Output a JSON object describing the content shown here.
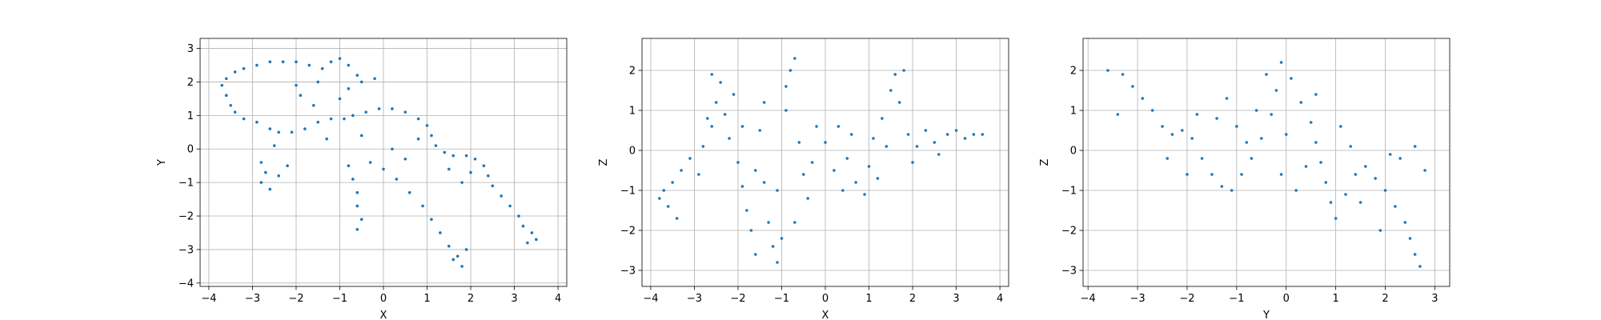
{
  "chart_data": [
    {
      "type": "scatter",
      "xlabel": "X",
      "ylabel": "Y",
      "xlim": [
        -4.2,
        4.2
      ],
      "ylim": [
        -4.1,
        3.3
      ],
      "xticks": [
        -4,
        -3,
        -2,
        -1,
        0,
        1,
        2,
        3,
        4
      ],
      "yticks": [
        -4,
        -3,
        -2,
        -1,
        0,
        1,
        2,
        3
      ],
      "grid": true,
      "color": "#1f77b4",
      "series": [
        {
          "points": [
            [
              -3.6,
              2.1
            ],
            [
              -3.4,
              2.3
            ],
            [
              -3.2,
              2.4
            ],
            [
              -2.9,
              2.5
            ],
            [
              -2.6,
              2.6
            ],
            [
              -2.3,
              2.6
            ],
            [
              -2.0,
              2.6
            ],
            [
              -1.7,
              2.5
            ],
            [
              -1.4,
              2.4
            ],
            [
              -1.2,
              2.6
            ],
            [
              -1.0,
              2.7
            ],
            [
              -0.8,
              2.5
            ],
            [
              -0.6,
              2.2
            ],
            [
              -0.5,
              2.0
            ],
            [
              -3.7,
              1.9
            ],
            [
              -3.6,
              1.6
            ],
            [
              -3.5,
              1.3
            ],
            [
              -3.4,
              1.1
            ],
            [
              -3.2,
              0.9
            ],
            [
              -2.9,
              0.8
            ],
            [
              -2.6,
              0.6
            ],
            [
              -2.4,
              0.5
            ],
            [
              -2.1,
              0.5
            ],
            [
              -1.8,
              0.6
            ],
            [
              -1.5,
              0.8
            ],
            [
              -1.2,
              0.9
            ],
            [
              -0.9,
              0.9
            ],
            [
              -0.7,
              1.0
            ],
            [
              -0.4,
              1.1
            ],
            [
              -0.1,
              1.2
            ],
            [
              0.2,
              1.2
            ],
            [
              0.5,
              1.1
            ],
            [
              0.8,
              0.9
            ],
            [
              1.0,
              0.7
            ],
            [
              1.1,
              0.4
            ],
            [
              1.2,
              0.1
            ],
            [
              1.4,
              -0.1
            ],
            [
              1.6,
              -0.2
            ],
            [
              1.9,
              -0.2
            ],
            [
              2.1,
              -0.3
            ],
            [
              2.3,
              -0.5
            ],
            [
              2.4,
              -0.8
            ],
            [
              2.5,
              -1.1
            ],
            [
              2.7,
              -1.4
            ],
            [
              2.9,
              -1.7
            ],
            [
              3.1,
              -2.0
            ],
            [
              3.2,
              -2.3
            ],
            [
              3.4,
              -2.5
            ],
            [
              3.5,
              -2.7
            ],
            [
              3.3,
              -2.8
            ],
            [
              -2.8,
              -0.4
            ],
            [
              -2.7,
              -0.7
            ],
            [
              -2.8,
              -1.0
            ],
            [
              -2.6,
              -1.2
            ],
            [
              -2.4,
              -0.8
            ],
            [
              -2.2,
              -0.5
            ],
            [
              -0.8,
              -0.5
            ],
            [
              -0.7,
              -0.9
            ],
            [
              -0.6,
              -1.3
            ],
            [
              -0.6,
              -1.7
            ],
            [
              -0.5,
              -2.1
            ],
            [
              -0.6,
              -2.4
            ],
            [
              -0.3,
              -0.4
            ],
            [
              0.0,
              -0.6
            ],
            [
              0.3,
              -0.9
            ],
            [
              0.6,
              -1.3
            ],
            [
              0.9,
              -1.7
            ],
            [
              1.1,
              -2.1
            ],
            [
              1.3,
              -2.5
            ],
            [
              1.5,
              -2.9
            ],
            [
              1.7,
              -3.2
            ],
            [
              1.8,
              -3.5
            ],
            [
              1.6,
              -3.3
            ],
            [
              1.9,
              -3.0
            ],
            [
              -1.6,
              1.3
            ],
            [
              -1.9,
              1.6
            ],
            [
              -2.0,
              1.9
            ],
            [
              -1.0,
              1.5
            ],
            [
              -0.8,
              1.8
            ],
            [
              -0.5,
              0.4
            ],
            [
              0.2,
              0.0
            ],
            [
              0.5,
              -0.3
            ],
            [
              0.8,
              0.3
            ],
            [
              1.5,
              -0.6
            ],
            [
              2.0,
              -0.7
            ],
            [
              1.8,
              -1.0
            ],
            [
              -1.3,
              0.3
            ],
            [
              -2.5,
              0.1
            ],
            [
              -0.2,
              2.1
            ],
            [
              -1.5,
              2.0
            ]
          ]
        }
      ]
    },
    {
      "type": "scatter",
      "xlabel": "X",
      "ylabel": "Z",
      "xlim": [
        -4.2,
        4.2
      ],
      "ylim": [
        -3.4,
        2.8
      ],
      "xticks": [
        -4,
        -3,
        -2,
        -1,
        0,
        1,
        2,
        3,
        4
      ],
      "yticks": [
        -3,
        -2,
        -1,
        0,
        1,
        2
      ],
      "grid": true,
      "color": "#1f77b4",
      "series": [
        {
          "points": [
            [
              -3.7,
              -1.0
            ],
            [
              -3.6,
              -1.4
            ],
            [
              -3.5,
              -0.8
            ],
            [
              -3.4,
              -1.7
            ],
            [
              -3.3,
              -0.5
            ],
            [
              -3.1,
              -0.2
            ],
            [
              -2.8,
              0.1
            ],
            [
              -2.6,
              0.6
            ],
            [
              -2.5,
              1.2
            ],
            [
              -2.4,
              1.7
            ],
            [
              -2.6,
              1.9
            ],
            [
              -2.3,
              0.9
            ],
            [
              -2.2,
              0.3
            ],
            [
              -2.0,
              -0.3
            ],
            [
              -1.9,
              -0.9
            ],
            [
              -1.8,
              -1.5
            ],
            [
              -1.7,
              -2.0
            ],
            [
              -1.6,
              -0.5
            ],
            [
              -1.5,
              0.5
            ],
            [
              -1.4,
              1.2
            ],
            [
              -1.3,
              -1.8
            ],
            [
              -1.2,
              -2.4
            ],
            [
              -1.1,
              -2.8
            ],
            [
              -1.0,
              -2.2
            ],
            [
              -0.9,
              1.0
            ],
            [
              -0.8,
              2.0
            ],
            [
              -0.7,
              2.3
            ],
            [
              -0.9,
              1.6
            ],
            [
              -0.6,
              0.2
            ],
            [
              -0.5,
              -0.6
            ],
            [
              -0.4,
              -1.2
            ],
            [
              -0.3,
              -0.3
            ],
            [
              0.0,
              0.2
            ],
            [
              0.3,
              0.6
            ],
            [
              0.5,
              -0.2
            ],
            [
              0.7,
              -0.8
            ],
            [
              0.9,
              -1.1
            ],
            [
              1.1,
              0.3
            ],
            [
              1.3,
              0.8
            ],
            [
              1.5,
              1.5
            ],
            [
              1.6,
              1.9
            ],
            [
              1.8,
              2.0
            ],
            [
              1.7,
              1.2
            ],
            [
              1.9,
              0.4
            ],
            [
              2.1,
              0.1
            ],
            [
              2.3,
              0.5
            ],
            [
              2.5,
              0.2
            ],
            [
              2.8,
              0.4
            ],
            [
              3.0,
              0.5
            ],
            [
              3.2,
              0.3
            ],
            [
              3.4,
              0.4
            ],
            [
              3.6,
              0.4
            ],
            [
              0.2,
              -0.5
            ],
            [
              0.6,
              0.4
            ],
            [
              1.0,
              -0.4
            ],
            [
              1.4,
              0.1
            ],
            [
              2.0,
              -0.3
            ],
            [
              -2.7,
              0.8
            ],
            [
              -2.1,
              1.4
            ],
            [
              -1.4,
              -0.8
            ],
            [
              -1.9,
              0.6
            ],
            [
              -1.1,
              -1.0
            ],
            [
              -0.7,
              -1.8
            ],
            [
              0.4,
              -1.0
            ],
            [
              1.2,
              -0.7
            ],
            [
              2.6,
              -0.1
            ],
            [
              -2.9,
              -0.6
            ],
            [
              -3.8,
              -1.2
            ],
            [
              -1.6,
              -2.6
            ],
            [
              -0.2,
              0.6
            ]
          ]
        }
      ]
    },
    {
      "type": "scatter",
      "xlabel": "Y",
      "ylabel": "Z",
      "xlim": [
        -4.1,
        3.3
      ],
      "ylim": [
        -3.4,
        2.8
      ],
      "xticks": [
        -4,
        -3,
        -2,
        -1,
        0,
        1,
        2,
        3
      ],
      "yticks": [
        -3,
        -2,
        -1,
        0,
        1,
        2
      ],
      "grid": true,
      "color": "#1f77b4",
      "series": [
        {
          "points": [
            [
              -3.6,
              2.0
            ],
            [
              -3.3,
              1.9
            ],
            [
              -3.1,
              1.6
            ],
            [
              -2.9,
              1.3
            ],
            [
              -2.7,
              1.0
            ],
            [
              -2.5,
              0.6
            ],
            [
              -2.3,
              0.4
            ],
            [
              -2.1,
              0.5
            ],
            [
              -1.9,
              0.3
            ],
            [
              -1.7,
              -0.2
            ],
            [
              -1.5,
              -0.6
            ],
            [
              -1.3,
              -0.9
            ],
            [
              -1.1,
              -1.0
            ],
            [
              -0.9,
              -0.6
            ],
            [
              -0.7,
              -0.2
            ],
            [
              -0.5,
              0.3
            ],
            [
              -0.3,
              0.9
            ],
            [
              -0.2,
              1.5
            ],
            [
              -0.4,
              1.9
            ],
            [
              -0.1,
              2.2
            ],
            [
              0.1,
              1.8
            ],
            [
              0.3,
              1.2
            ],
            [
              0.5,
              0.7
            ],
            [
              0.6,
              0.2
            ],
            [
              0.7,
              -0.3
            ],
            [
              0.8,
              -0.8
            ],
            [
              0.9,
              -1.3
            ],
            [
              1.0,
              -1.7
            ],
            [
              1.2,
              -1.1
            ],
            [
              1.4,
              -0.6
            ],
            [
              1.6,
              -0.4
            ],
            [
              1.8,
              -0.7
            ],
            [
              2.0,
              -1.0
            ],
            [
              2.2,
              -1.4
            ],
            [
              2.4,
              -1.8
            ],
            [
              2.5,
              -2.2
            ],
            [
              2.6,
              -2.6
            ],
            [
              2.7,
              -2.9
            ],
            [
              2.8,
              -0.5
            ],
            [
              2.6,
              0.1
            ],
            [
              2.3,
              -0.2
            ],
            [
              -1.0,
              0.6
            ],
            [
              -0.6,
              1.0
            ],
            [
              -1.4,
              0.8
            ],
            [
              -2.0,
              -0.6
            ],
            [
              -1.8,
              0.9
            ],
            [
              0.0,
              0.4
            ],
            [
              0.4,
              -0.4
            ],
            [
              0.2,
              -1.0
            ],
            [
              -0.8,
              0.2
            ],
            [
              1.1,
              0.6
            ],
            [
              1.3,
              0.1
            ],
            [
              1.5,
              -1.3
            ],
            [
              0.6,
              1.4
            ],
            [
              -1.2,
              1.3
            ],
            [
              -2.4,
              -0.2
            ],
            [
              2.1,
              -0.1
            ],
            [
              1.9,
              -2.0
            ],
            [
              -3.4,
              0.9
            ],
            [
              -0.1,
              -0.6
            ]
          ]
        }
      ]
    }
  ]
}
